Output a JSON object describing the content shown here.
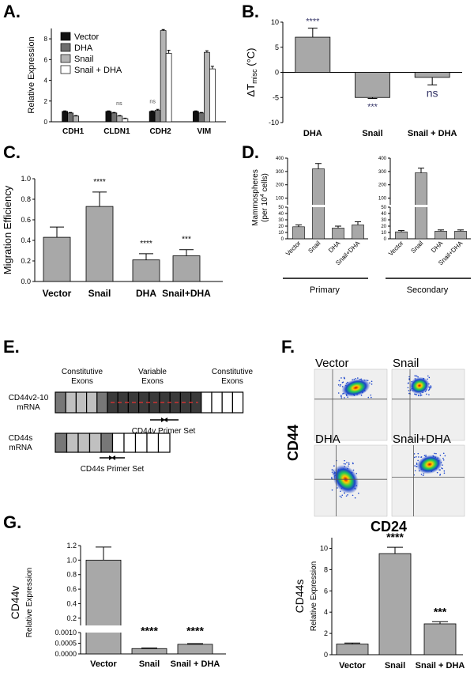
{
  "figure": {
    "panels": {
      "A": "A.",
      "B": "B.",
      "C": "C.",
      "D": "D.",
      "E": "E.",
      "F": "F.",
      "G": "G."
    }
  },
  "colors": {
    "black": "#111111",
    "dark_gray": "#6e6e6e",
    "light_gray": "#b4b4b4",
    "white": "#ffffff",
    "bar_gray": "#a8a8a8",
    "red_dash": "#cc3333",
    "exon_gray": "#c0c0c0",
    "exon_dark": "#777777",
    "exon_black": "#3a3a3a"
  },
  "chart_data": [
    {
      "id": "A",
      "type": "bar",
      "ylabel": "Relative Expression",
      "ylim": [
        0,
        9
      ],
      "yticks": [
        0,
        2,
        4,
        6,
        8
      ],
      "categories": [
        "CDH1",
        "CLDN1",
        "CDH2",
        "VIM"
      ],
      "series": [
        {
          "name": "Vector",
          "values": [
            1.0,
            1.0,
            1.0,
            1.0
          ],
          "errors": [
            0.05,
            0.05,
            0.05,
            0.05
          ]
        },
        {
          "name": "DHA",
          "values": [
            0.85,
            0.85,
            1.1,
            0.85
          ],
          "errors": [
            0.05,
            0.05,
            0.1,
            0.05
          ]
        },
        {
          "name": "Snail",
          "values": [
            0.55,
            0.55,
            8.8,
            6.7
          ],
          "errors": [
            0.05,
            0.05,
            0.1,
            0.15
          ]
        },
        {
          "name": "Snail + DHA",
          "values": [
            0.0,
            0.3,
            6.6,
            5.1
          ],
          "errors": [
            0.0,
            0.05,
            0.3,
            0.25
          ]
        }
      ],
      "annotations": [
        {
          "text": "ns",
          "category": "CLDN1"
        },
        {
          "text": "ns",
          "category": "CDH2"
        }
      ]
    },
    {
      "id": "B",
      "type": "bar",
      "ylabel_main": "ΔT",
      "ylabel_sub": "misc",
      "ylabel_unit": " (°C)",
      "ylim": [
        -10,
        10
      ],
      "yticks": [
        -10,
        -5,
        0,
        5,
        10
      ],
      "categories": [
        "DHA",
        "Snail",
        "Snail + DHA"
      ],
      "values": [
        7.0,
        -5.0,
        -1.0
      ],
      "errors": [
        1.8,
        0.2,
        1.5
      ],
      "significance": [
        "****",
        "***",
        "ns"
      ]
    },
    {
      "id": "C",
      "type": "bar",
      "ylabel": "Migration Efficiency",
      "ylim": [
        0,
        1.0
      ],
      "yticks": [
        "0.0",
        "0.2",
        "0.4",
        "0.6",
        "0.8",
        "1.0"
      ],
      "categories": [
        "Vector",
        "Snail",
        "DHA",
        "Snail+DHA"
      ],
      "values": [
        0.43,
        0.73,
        0.21,
        0.25
      ],
      "errors": [
        0.1,
        0.14,
        0.06,
        0.06
      ],
      "significance": [
        "",
        "****",
        "****",
        "***"
      ]
    },
    {
      "id": "D",
      "type": "bar",
      "ylabel_line1": "Mammospheres",
      "ylabel_line2": "(per 10",
      "ylabel_sup": "4",
      "ylabel_tail": " cells)",
      "axis_break": true,
      "lower_range": [
        0,
        50
      ],
      "upper_range": [
        50,
        400
      ],
      "lower_ticks": [
        "0",
        "10",
        "20",
        "30",
        "40",
        "50"
      ],
      "upper_ticks": [
        "100",
        "200",
        "300",
        "400"
      ],
      "categories": [
        "Vector",
        "Snail",
        "DHA",
        "Snail+DHA"
      ],
      "groups": [
        {
          "name": "Primary",
          "values": [
            19,
            320,
            17,
            22
          ],
          "errors": [
            3,
            40,
            3,
            5
          ]
        },
        {
          "name": "Secondary",
          "values": [
            11,
            290,
            12,
            12
          ],
          "errors": [
            2,
            35,
            2,
            2
          ]
        }
      ]
    },
    {
      "id": "G1",
      "type": "bar",
      "title": "CD44v",
      "ylabel": "Relative Expression",
      "axis_break": true,
      "lower_ticks": [
        "0.0000",
        "0.0005",
        "0.0010"
      ],
      "upper_ticks": [
        "0.2",
        "0.4",
        "0.6",
        "0.8",
        "1.0",
        "1.2"
      ],
      "categories": [
        "Vector",
        "Snail",
        "Snail + DHA"
      ],
      "values": [
        1.0,
        0.00025,
        0.00045
      ],
      "errors": [
        0.18,
        3e-05,
        3e-05
      ],
      "significance": [
        "",
        "****",
        "****"
      ]
    },
    {
      "id": "G2",
      "type": "bar",
      "title": "CD44s",
      "ylabel": "Relative Expression",
      "ylim": [
        0,
        11
      ],
      "yticks": [
        0,
        2,
        4,
        6,
        8,
        10
      ],
      "categories": [
        "Vector",
        "Snail",
        "Snail + DHA"
      ],
      "values": [
        1.0,
        9.5,
        2.9
      ],
      "errors": [
        0.1,
        0.6,
        0.2
      ],
      "significance": [
        "",
        "****",
        "***"
      ]
    }
  ],
  "panel_e": {
    "constitutive_left": [
      "Constitutive",
      "Exons"
    ],
    "variable": [
      "Variable",
      "Exons"
    ],
    "constitutive_right": [
      "Constitutive",
      "Exons"
    ],
    "cd44v_label": [
      "CD44v2-10",
      "mRNA"
    ],
    "cd44s_label": [
      "CD44s",
      "mRNA"
    ],
    "cd44v_primer": "CD44v Primer Set",
    "cd44s_primer": "CD44s Primer Set"
  },
  "panel_f": {
    "plots": [
      "Vector",
      "Snail",
      "DHA",
      "Snail+DHA"
    ],
    "y_axis": "CD44",
    "x_axis": "CD24"
  }
}
